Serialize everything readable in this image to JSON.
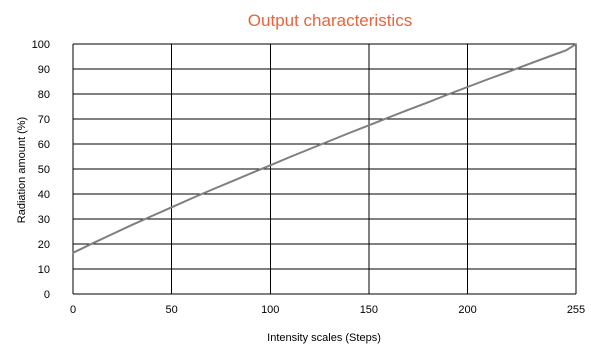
{
  "chart_data": {
    "type": "line",
    "title": "Output characteristics",
    "xlabel": "Intensity scales (Steps)",
    "ylabel": "Radiation amount (%)",
    "xlim": [
      0,
      255
    ],
    "ylim": [
      0,
      100
    ],
    "x_ticks": [
      0,
      50,
      100,
      150,
      200,
      255
    ],
    "y_ticks": [
      0,
      10,
      20,
      30,
      40,
      50,
      60,
      70,
      80,
      90,
      100
    ],
    "grid": true,
    "legend": "none",
    "colors": {
      "title": "#e8643c",
      "line": "#7f7f7f",
      "grid": "#000000"
    },
    "series": [
      {
        "x": [
          0,
          10,
          20,
          30,
          40,
          50,
          60,
          70,
          80,
          90,
          100,
          110,
          120,
          130,
          140,
          150,
          160,
          170,
          180,
          190,
          200,
          210,
          220,
          230,
          240,
          250,
          255
        ],
        "values": [
          16.5,
          20.3,
          24.0,
          27.7,
          31.2,
          34.7,
          38.2,
          41.6,
          44.9,
          48.2,
          51.5,
          54.8,
          58.0,
          61.2,
          64.4,
          67.5,
          70.6,
          73.7,
          76.7,
          79.8,
          82.8,
          85.8,
          88.7,
          91.7,
          94.6,
          97.5,
          99.9
        ]
      }
    ]
  }
}
